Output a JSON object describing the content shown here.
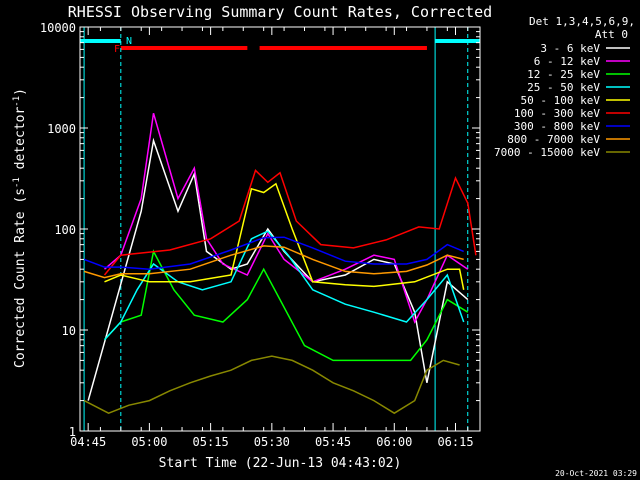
{
  "chart_data": {
    "type": "line",
    "title": "RHESSI Observing Summary Count Rates, Corrected",
    "xlabel": "Start Time (22-Jun-13 04:43:02)",
    "ylabel": "Corrected Count Rate (s",
    "ylabel_sup1": "-1",
    "ylabel_mid": " detector",
    "ylabel_sup2": "-1",
    "ylabel_end": ")",
    "y_scale": "log",
    "ylim": [
      1,
      10000
    ],
    "y_ticks": [
      {
        "value": 1,
        "label": "1"
      },
      {
        "value": 10,
        "label": "10"
      },
      {
        "value": 100,
        "label": "100"
      },
      {
        "value": 1000,
        "label": "1000"
      },
      {
        "value": 10000,
        "label": "10000"
      }
    ],
    "xlim": [
      "04:43",
      "06:21"
    ],
    "x_ticks": [
      "04:45",
      "05:00",
      "05:15",
      "05:30",
      "05:45",
      "06:00",
      "06:15"
    ],
    "legend_header": [
      "Det 1,3,4,5,6,9,",
      "Att 0"
    ],
    "legend_placement": "top-right outside plot",
    "flag_labels": {
      "F": "F",
      "N": "N"
    },
    "footer_date": "20-Oct-2021 03:29",
    "series": [
      {
        "name": "3 - 6 keV",
        "color": "#ffffff",
        "points": [
          [
            "04:45",
            2
          ],
          [
            "04:58",
            150
          ],
          [
            "05:01",
            750
          ],
          [
            "05:07",
            150
          ],
          [
            "05:11",
            350
          ],
          [
            "05:14",
            60
          ],
          [
            "05:20",
            40
          ],
          [
            "05:24",
            45
          ],
          [
            "05:29",
            100
          ],
          [
            "05:33",
            60
          ],
          [
            "05:40",
            30
          ],
          [
            "05:48",
            35
          ],
          [
            "05:55",
            50
          ],
          [
            "06:00",
            45
          ],
          [
            "06:05",
            15
          ],
          [
            "06:08",
            3
          ],
          [
            "06:13",
            30
          ],
          [
            "06:18",
            20
          ]
        ]
      },
      {
        "name": "6 - 12 keV",
        "color": "#ff00ff",
        "points": [
          [
            "04:49",
            40
          ],
          [
            "04:53",
            55
          ],
          [
            "04:58",
            200
          ],
          [
            "05:01",
            1400
          ],
          [
            "05:07",
            200
          ],
          [
            "05:11",
            400
          ],
          [
            "05:14",
            80
          ],
          [
            "05:18",
            45
          ],
          [
            "05:24",
            35
          ],
          [
            "05:29",
            90
          ],
          [
            "05:33",
            50
          ],
          [
            "05:40",
            30
          ],
          [
            "05:48",
            40
          ],
          [
            "05:55",
            55
          ],
          [
            "06:00",
            50
          ],
          [
            "06:05",
            12
          ],
          [
            "06:08",
            20
          ],
          [
            "06:13",
            55
          ],
          [
            "06:18",
            40
          ]
        ]
      },
      {
        "name": "12 - 25 keV",
        "color": "#00ff00",
        "points": [
          [
            "04:49",
            8
          ],
          [
            "04:53",
            12
          ],
          [
            "04:58",
            14
          ],
          [
            "05:01",
            60
          ],
          [
            "05:06",
            25
          ],
          [
            "05:11",
            14
          ],
          [
            "05:18",
            12
          ],
          [
            "05:24",
            20
          ],
          [
            "05:28",
            40
          ],
          [
            "05:32",
            20
          ],
          [
            "05:38",
            7
          ],
          [
            "05:45",
            5
          ],
          [
            "05:55",
            5
          ],
          [
            "06:04",
            5
          ],
          [
            "06:08",
            8
          ],
          [
            "06:13",
            20
          ],
          [
            "06:18",
            15
          ]
        ]
      },
      {
        "name": "25 - 50 keV",
        "color": "#00ffff",
        "points": [
          [
            "04:49",
            8
          ],
          [
            "04:53",
            12
          ],
          [
            "04:57",
            25
          ],
          [
            "05:01",
            45
          ],
          [
            "05:07",
            30
          ],
          [
            "05:13",
            25
          ],
          [
            "05:20",
            30
          ],
          [
            "05:25",
            80
          ],
          [
            "05:29",
            95
          ],
          [
            "05:34",
            55
          ],
          [
            "05:40",
            25
          ],
          [
            "05:48",
            18
          ],
          [
            "05:55",
            15
          ],
          [
            "06:03",
            12
          ],
          [
            "06:08",
            20
          ],
          [
            "06:13",
            35
          ],
          [
            "06:17",
            12
          ]
        ]
      },
      {
        "name": "50 - 100 keV",
        "color": "#ffff00",
        "points": [
          [
            "04:49",
            30
          ],
          [
            "04:53",
            35
          ],
          [
            "05:00",
            30
          ],
          [
            "05:10",
            30
          ],
          [
            "05:20",
            35
          ],
          [
            "05:25",
            250
          ],
          [
            "05:28",
            230
          ],
          [
            "05:31",
            280
          ],
          [
            "05:35",
            100
          ],
          [
            "05:40",
            30
          ],
          [
            "05:48",
            28
          ],
          [
            "05:55",
            27
          ],
          [
            "06:05",
            30
          ],
          [
            "06:13",
            40
          ],
          [
            "06:16",
            40
          ],
          [
            "06:17",
            25
          ]
        ]
      },
      {
        "name": "100 - 300 keV",
        "color": "#ff0000",
        "points": [
          [
            "04:49",
            35
          ],
          [
            "04:53",
            55
          ],
          [
            "05:05",
            62
          ],
          [
            "05:15",
            80
          ],
          [
            "05:22",
            120
          ],
          [
            "05:26",
            380
          ],
          [
            "05:29",
            290
          ],
          [
            "05:32",
            360
          ],
          [
            "05:36",
            120
          ],
          [
            "05:42",
            70
          ],
          [
            "05:50",
            65
          ],
          [
            "05:58",
            78
          ],
          [
            "06:06",
            105
          ],
          [
            "06:11",
            100
          ],
          [
            "06:15",
            320
          ],
          [
            "06:18",
            180
          ],
          [
            "06:20",
            55
          ]
        ]
      },
      {
        "name": "300 - 800 keV",
        "color": "#0000ff",
        "points": [
          [
            "04:44",
            50
          ],
          [
            "04:49",
            42
          ],
          [
            "04:53",
            42
          ],
          [
            "05:00",
            40
          ],
          [
            "05:10",
            45
          ],
          [
            "05:20",
            62
          ],
          [
            "05:28",
            82
          ],
          [
            "05:33",
            83
          ],
          [
            "05:40",
            65
          ],
          [
            "05:48",
            48
          ],
          [
            "05:55",
            45
          ],
          [
            "06:03",
            45
          ],
          [
            "06:08",
            50
          ],
          [
            "06:13",
            70
          ],
          [
            "06:17",
            60
          ]
        ]
      },
      {
        "name": "800 - 7000 keV",
        "color": "#ff9900",
        "points": [
          [
            "04:44",
            38
          ],
          [
            "04:49",
            33
          ],
          [
            "04:53",
            36
          ],
          [
            "05:00",
            36
          ],
          [
            "05:10",
            40
          ],
          [
            "05:20",
            55
          ],
          [
            "05:28",
            68
          ],
          [
            "05:33",
            66
          ],
          [
            "05:40",
            50
          ],
          [
            "05:48",
            38
          ],
          [
            "05:55",
            36
          ],
          [
            "06:03",
            38
          ],
          [
            "06:08",
            44
          ],
          [
            "06:13",
            55
          ],
          [
            "06:17",
            50
          ]
        ]
      },
      {
        "name": "7000 - 15000 keV",
        "color": "#888800",
        "points": [
          [
            "04:44",
            2
          ],
          [
            "04:50",
            1.5
          ],
          [
            "04:55",
            1.8
          ],
          [
            "05:00",
            2
          ],
          [
            "05:05",
            2.5
          ],
          [
            "05:10",
            3
          ],
          [
            "05:15",
            3.5
          ],
          [
            "05:20",
            4
          ],
          [
            "05:25",
            5
          ],
          [
            "05:30",
            5.5
          ],
          [
            "05:35",
            5
          ],
          [
            "05:40",
            4
          ],
          [
            "05:45",
            3
          ],
          [
            "05:50",
            2.5
          ],
          [
            "05:55",
            2
          ],
          [
            "06:00",
            1.5
          ],
          [
            "06:05",
            2
          ],
          [
            "06:08",
            4
          ],
          [
            "06:12",
            5
          ],
          [
            "06:16",
            4.5
          ]
        ]
      }
    ],
    "spans": [
      {
        "kind": "saa",
        "color": "#00ffff",
        "start": "04:43",
        "end": "04:53"
      },
      {
        "kind": "saa",
        "color": "#00ffff",
        "start": "06:10",
        "end": "06:21"
      },
      {
        "kind": "flare",
        "color": "#ff0000",
        "start": "04:53",
        "end": "05:24"
      },
      {
        "kind": "flare",
        "color": "#ff0000",
        "start": "05:27",
        "end": "06:08"
      }
    ],
    "night_lines": [
      {
        "time": "04:44",
        "style": "solid"
      },
      {
        "time": "04:53",
        "style": "dashed"
      },
      {
        "time": "06:10",
        "style": "solid"
      },
      {
        "time": "06:18",
        "style": "dashed"
      }
    ]
  }
}
